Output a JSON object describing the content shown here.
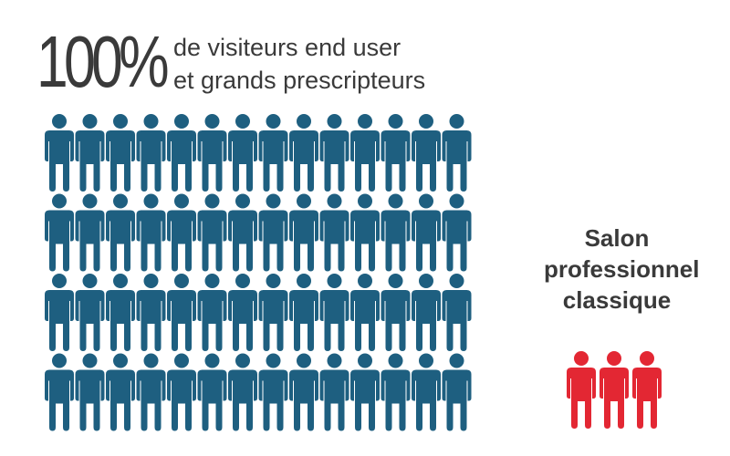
{
  "headline": {
    "percent": "100%",
    "line1": "de visiteurs end user",
    "line2": "et grands prescripteurs"
  },
  "crowd": {
    "icon": "person-icon",
    "rows": 4,
    "columns": 14,
    "color": "#1e5f80"
  },
  "comparison": {
    "label_lines": [
      "Salon",
      "professionnel",
      "classique"
    ],
    "icon": "person-icon",
    "count": 3,
    "color": "#e32733"
  }
}
